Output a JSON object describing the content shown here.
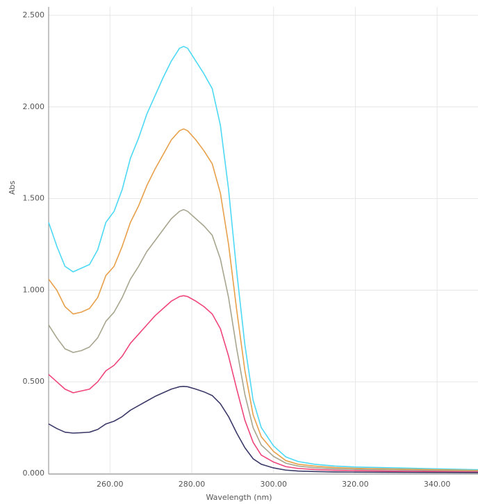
{
  "chart_data": {
    "type": "line",
    "xlabel": "Wavelength (nm)",
    "ylabel": "Abs",
    "x": [
      245,
      247,
      249,
      251,
      253,
      255,
      257,
      259,
      261,
      263,
      265,
      267,
      269,
      271,
      273,
      275,
      277,
      278,
      279,
      281,
      283,
      285,
      287,
      289,
      291,
      293,
      295,
      297,
      300,
      303,
      306,
      310,
      315,
      320,
      330,
      340,
      350
    ],
    "series": [
      {
        "color": "#4dd9f5",
        "values": [
          1.37,
          1.24,
          1.13,
          1.1,
          1.12,
          1.14,
          1.22,
          1.37,
          1.43,
          1.55,
          1.72,
          1.83,
          1.96,
          2.06,
          2.16,
          2.25,
          2.32,
          2.33,
          2.32,
          2.25,
          2.18,
          2.1,
          1.9,
          1.55,
          1.1,
          0.7,
          0.4,
          0.25,
          0.15,
          0.09,
          0.065,
          0.05,
          0.04,
          0.035,
          0.03,
          0.025,
          0.02
        ]
      },
      {
        "color": "#e8a04a",
        "values": [
          1.06,
          1.0,
          0.91,
          0.87,
          0.88,
          0.9,
          0.96,
          1.08,
          1.13,
          1.24,
          1.37,
          1.46,
          1.57,
          1.66,
          1.74,
          1.82,
          1.87,
          1.88,
          1.87,
          1.82,
          1.76,
          1.69,
          1.53,
          1.25,
          0.89,
          0.56,
          0.32,
          0.2,
          0.12,
          0.07,
          0.05,
          0.04,
          0.032,
          0.028,
          0.024,
          0.02,
          0.016
        ]
      },
      {
        "color": "#a8a58e",
        "values": [
          0.81,
          0.74,
          0.68,
          0.66,
          0.67,
          0.69,
          0.74,
          0.83,
          0.88,
          0.96,
          1.06,
          1.13,
          1.21,
          1.27,
          1.33,
          1.39,
          1.43,
          1.44,
          1.43,
          1.39,
          1.35,
          1.3,
          1.17,
          0.96,
          0.68,
          0.43,
          0.25,
          0.155,
          0.093,
          0.056,
          0.04,
          0.031,
          0.025,
          0.022,
          0.019,
          0.015,
          0.012
        ]
      },
      {
        "color": "#f0457a",
        "values": [
          0.54,
          0.5,
          0.46,
          0.44,
          0.45,
          0.46,
          0.5,
          0.56,
          0.59,
          0.64,
          0.71,
          0.76,
          0.81,
          0.86,
          0.9,
          0.94,
          0.965,
          0.97,
          0.965,
          0.94,
          0.91,
          0.87,
          0.79,
          0.64,
          0.46,
          0.29,
          0.17,
          0.1,
          0.062,
          0.037,
          0.027,
          0.021,
          0.017,
          0.015,
          0.012,
          0.01,
          0.008
        ]
      },
      {
        "color": "#3b3a68",
        "values": [
          0.27,
          0.245,
          0.225,
          0.22,
          0.222,
          0.225,
          0.24,
          0.27,
          0.285,
          0.31,
          0.345,
          0.37,
          0.395,
          0.42,
          0.44,
          0.46,
          0.473,
          0.475,
          0.473,
          0.46,
          0.445,
          0.425,
          0.38,
          0.31,
          0.22,
          0.14,
          0.08,
          0.05,
          0.03,
          0.018,
          0.013,
          0.01,
          0.008,
          0.007,
          0.006,
          0.005,
          0.004
        ]
      }
    ],
    "xlim": [
      245,
      350
    ],
    "xticks": [
      {
        "value": 260,
        "label": "260.00"
      },
      {
        "value": 280,
        "label": "280.00"
      },
      {
        "value": 300,
        "label": "300.00"
      },
      {
        "value": 320,
        "label": "320.00"
      },
      {
        "value": 340,
        "label": "340.00"
      }
    ],
    "ylim": [
      0,
      2.5
    ],
    "yticks": [
      {
        "value": 0,
        "label": "0.000"
      },
      {
        "value": 0.5,
        "label": "0.500"
      },
      {
        "value": 1,
        "label": "1.000"
      },
      {
        "value": 1.5,
        "label": "1.500"
      },
      {
        "value": 2,
        "label": "2.000"
      },
      {
        "value": 2.5,
        "label": "2.500"
      }
    ],
    "grid": true
  }
}
